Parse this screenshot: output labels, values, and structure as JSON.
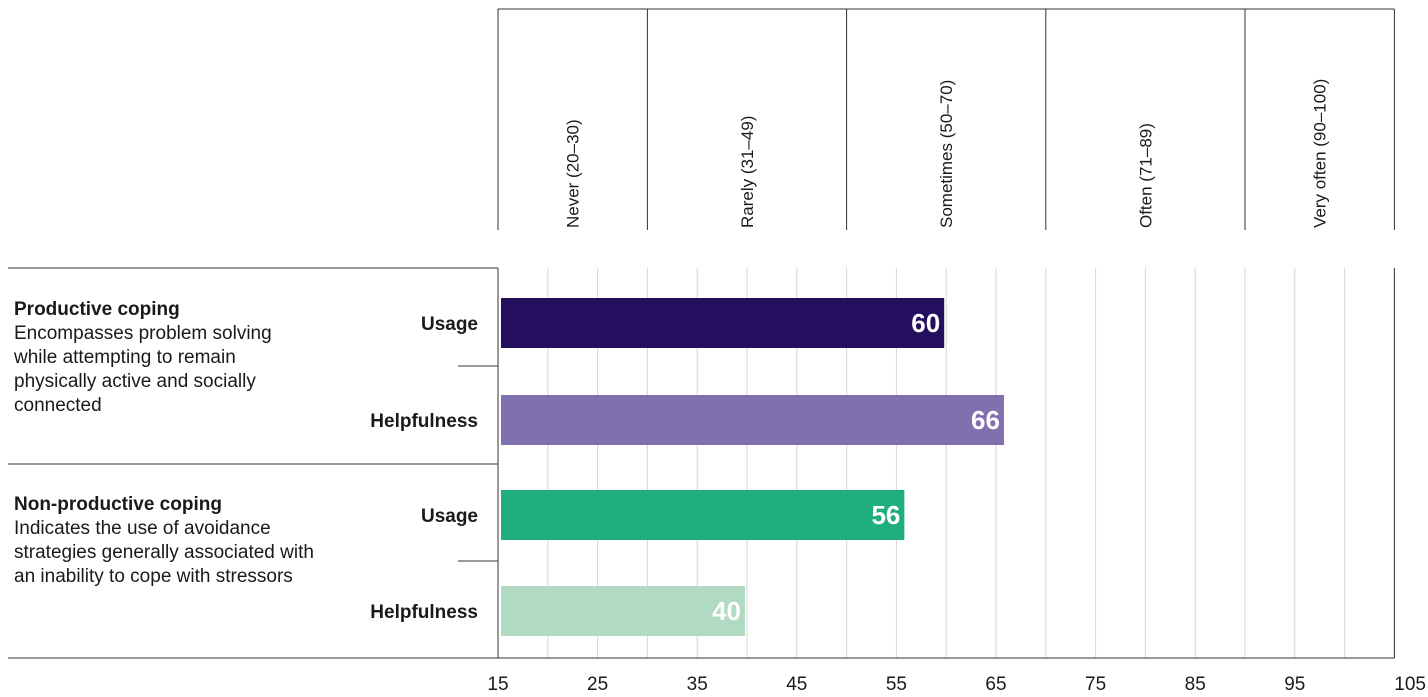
{
  "chart_data": {
    "type": "bar",
    "orientation": "horizontal",
    "title": "",
    "xlabel": "",
    "ylabel": "",
    "xlim": [
      15,
      105
    ],
    "x_ticks": [
      "15",
      "25",
      "35",
      "45",
      "55",
      "65",
      "75",
      "85",
      "95",
      "105"
    ],
    "grid": true,
    "bands": [
      {
        "label": "Never (20–30)",
        "range": [
          15,
          30
        ]
      },
      {
        "label": "Rarely (31–49)",
        "range": [
          30,
          50
        ]
      },
      {
        "label": "Sometimes (50–70)",
        "range": [
          50,
          70
        ]
      },
      {
        "label": "Often (71–89)",
        "range": [
          70,
          90
        ]
      },
      {
        "label": "Very often (90–100)",
        "range": [
          90,
          105
        ]
      }
    ],
    "groups": [
      {
        "title": "Productive coping",
        "description": "Encompasses problem solving while attempting to remain physically active and socially connected",
        "bars": [
          {
            "label": "Usage",
            "value": 60,
            "display": "60",
            "color": "#230f5e"
          },
          {
            "label": "Helpfulness",
            "value": 66,
            "display": "66",
            "color": "#8170af"
          }
        ]
      },
      {
        "title": "Non-productive coping",
        "description": "Indicates the use of avoidance strategies generally associated with an inability to cope with stressors",
        "bars": [
          {
            "label": "Usage",
            "value": 56,
            "display": "56",
            "color": "#20ae80"
          },
          {
            "label": "Helpfulness",
            "value": 40,
            "display": "40",
            "color": "#b1dac3"
          }
        ]
      }
    ]
  }
}
